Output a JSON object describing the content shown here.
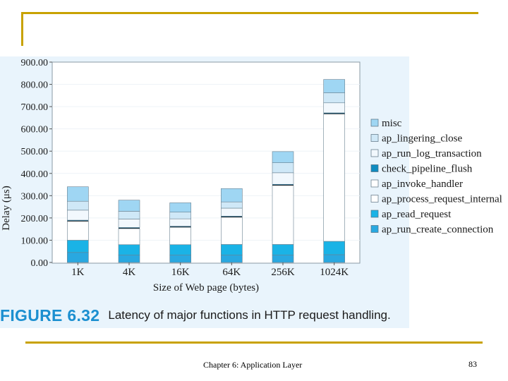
{
  "caption": {
    "label": "FIGURE 6.32",
    "text": "Latency of major functions in HTTP request handling."
  },
  "footer": {
    "chapter": "Chapter 6: Application Layer",
    "page": "83"
  },
  "colors": {
    "gold": "#c8a200",
    "accent": "#1b8fd0"
  },
  "chart_data": {
    "type": "bar",
    "stacked": true,
    "xlabel": "Size of Web page (bytes)",
    "ylabel": "Delay (μs)",
    "ylim": [
      0,
      900
    ],
    "yticks": [
      "0.00",
      "100.00",
      "200.00",
      "300.00",
      "400.00",
      "500.00",
      "600.00",
      "700.00",
      "800.00",
      "900.00"
    ],
    "categories": [
      "1K",
      "4K",
      "16K",
      "64K",
      "256K",
      "1024K"
    ],
    "legend_position": "right",
    "series": [
      {
        "name": "ap_run_create_connection",
        "color": "#29a8e0",
        "values": [
          45,
          33,
          33,
          33,
          33,
          35
        ]
      },
      {
        "name": "ap_read_request",
        "color": "#1ab3e6",
        "values": [
          55,
          47,
          47,
          48,
          48,
          60
        ]
      },
      {
        "name": "ap_process_request_internal",
        "color": "#ffffff",
        "values": [
          85,
          72,
          78,
          122,
          265,
          572
        ]
      },
      {
        "name": "ap_invoke_handler",
        "color": "#ffffff",
        "values": [
          3,
          3,
          3,
          3,
          3,
          3
        ]
      },
      {
        "name": "check_pipeline_flush",
        "color": "#0f8bbf",
        "values": [
          2,
          2,
          2,
          2,
          2,
          2
        ]
      },
      {
        "name": "ap_run_log_transaction",
        "color": "#f2f8fd",
        "values": [
          45,
          38,
          33,
          36,
          52,
          45
        ]
      },
      {
        "name": "ap_lingering_close",
        "color": "#cfe8f7",
        "values": [
          40,
          35,
          30,
          28,
          45,
          45
        ]
      },
      {
        "name": "misc",
        "color": "#9fd6f3",
        "values": [
          65,
          50,
          42,
          60,
          50,
          60
        ]
      }
    ]
  }
}
